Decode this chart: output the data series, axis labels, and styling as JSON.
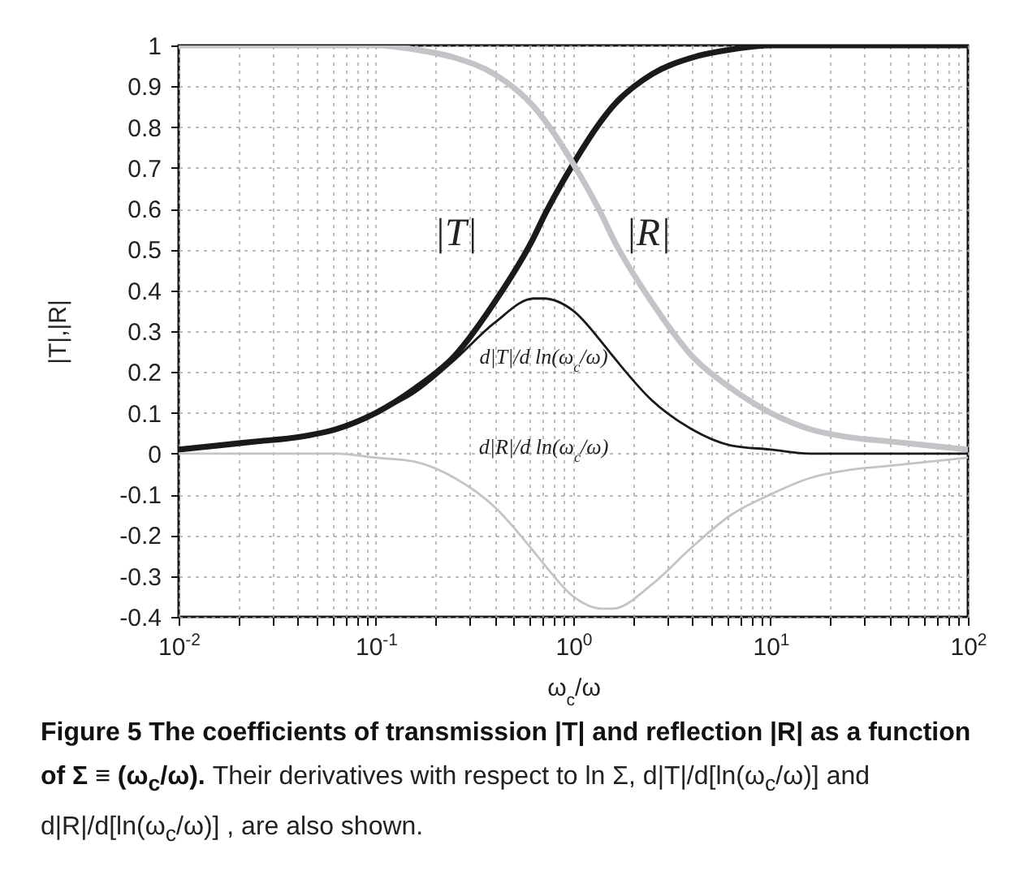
{
  "chart_data": {
    "type": "line",
    "xlabel": "ω$_{c}$/ω",
    "ylabel": "|T|,|R|",
    "x": [
      0.01,
      0.0158,
      0.0251,
      0.0398,
      0.0631,
      0.1,
      0.158,
      0.251,
      0.398,
      0.631,
      0.708,
      1,
      1.41,
      1.58,
      2.51,
      3.98,
      6.31,
      10,
      15.8,
      25.1,
      39.8,
      63.1,
      100
    ],
    "series": [
      {
        "name": "|T|",
        "color": "#1a1a1a",
        "values": [
          0.01,
          0.02,
          0.03,
          0.04,
          0.06,
          0.1,
          0.16,
          0.24,
          0.37,
          0.53,
          0.58,
          0.71,
          0.82,
          0.85,
          0.93,
          0.97,
          0.99,
          1.0,
          1.0,
          1.0,
          1.0,
          1.0,
          1.0
        ]
      },
      {
        "name": "|R|",
        "color": "#c4c4c8",
        "values": [
          1.0,
          1.0,
          1.0,
          1.0,
          1.0,
          1.0,
          0.99,
          0.97,
          0.93,
          0.85,
          0.82,
          0.71,
          0.58,
          0.53,
          0.37,
          0.24,
          0.16,
          0.1,
          0.06,
          0.04,
          0.03,
          0.02,
          0.01
        ]
      },
      {
        "name": "d|T|/d ln(ω$_{c}$/ω)",
        "color": "#1a1a1a",
        "values": [
          0.01,
          0.02,
          0.03,
          0.04,
          0.06,
          0.1,
          0.15,
          0.23,
          0.32,
          0.38,
          0.38,
          0.35,
          0.27,
          0.24,
          0.13,
          0.06,
          0.02,
          0.01,
          0.0,
          0.0,
          0.0,
          0.0,
          0.0
        ]
      },
      {
        "name": "d|R|/d ln(ω$_{c}$/ω)",
        "color": "#c4c4c8",
        "values": [
          0.0,
          0.0,
          0.0,
          0.0,
          0.0,
          -0.01,
          -0.02,
          -0.06,
          -0.13,
          -0.24,
          -0.27,
          -0.35,
          -0.38,
          -0.38,
          -0.32,
          -0.23,
          -0.15,
          -0.1,
          -0.06,
          -0.04,
          -0.03,
          -0.02,
          -0.01
        ]
      }
    ],
    "log": "x",
    "xlim": [
      0.01,
      100
    ],
    "xticks": [
      {
        "value": 0.01,
        "label": "10$^{-2}$"
      },
      {
        "value": 0.02,
        "label": null
      },
      {
        "value": 0.03,
        "label": null
      },
      {
        "value": 0.04,
        "label": null
      },
      {
        "value": 0.05,
        "label": null
      },
      {
        "value": 0.06,
        "label": null
      },
      {
        "value": 0.07,
        "label": null
      },
      {
        "value": 0.08,
        "label": null
      },
      {
        "value": 0.09,
        "label": null
      },
      {
        "value": 0.1,
        "label": "10$^{-1}$"
      },
      {
        "value": 0.2,
        "label": null
      },
      {
        "value": 0.3,
        "label": null
      },
      {
        "value": 0.4,
        "label": null
      },
      {
        "value": 0.5,
        "label": null
      },
      {
        "value": 0.6,
        "label": null
      },
      {
        "value": 0.7,
        "label": null
      },
      {
        "value": 0.8,
        "label": null
      },
      {
        "value": 0.9,
        "label": null
      },
      {
        "value": 1,
        "label": "10$^{0}$"
      },
      {
        "value": 2,
        "label": null
      },
      {
        "value": 3,
        "label": null
      },
      {
        "value": 4,
        "label": null
      },
      {
        "value": 5,
        "label": null
      },
      {
        "value": 6,
        "label": null
      },
      {
        "value": 7,
        "label": null
      },
      {
        "value": 8,
        "label": null
      },
      {
        "value": 9,
        "label": null
      },
      {
        "value": 10,
        "label": "10$^{1}$"
      },
      {
        "value": 20,
        "label": null
      },
      {
        "value": 30,
        "label": null
      },
      {
        "value": 40,
        "label": null
      },
      {
        "value": 50,
        "label": null
      },
      {
        "value": 60,
        "label": null
      },
      {
        "value": 70,
        "label": null
      },
      {
        "value": 80,
        "label": null
      },
      {
        "value": 90,
        "label": null
      },
      {
        "value": 100,
        "label": "10$^{2}$"
      }
    ],
    "ylim": [
      -0.4,
      1
    ],
    "yticks": [
      -0.4,
      -0.3,
      -0.2,
      -0.1,
      0,
      0.1,
      0.2,
      0.3,
      0.4,
      0.5,
      0.6,
      0.7,
      0.8,
      0.9,
      1
    ],
    "grid": true,
    "line_style": "solid",
    "annotations": [
      "Figure 5 The coefficients of transmission |T| and reflection |R| as a function of Σ ≡ (ω$_{c}$/ω).",
      "Their derivatives with respect to ln Σ, d|T|/d[ln(ω$_{c}$/ω)] and d|R|/d[ln(ω$_{c}$/ω)] , are also shown."
    ]
  }
}
